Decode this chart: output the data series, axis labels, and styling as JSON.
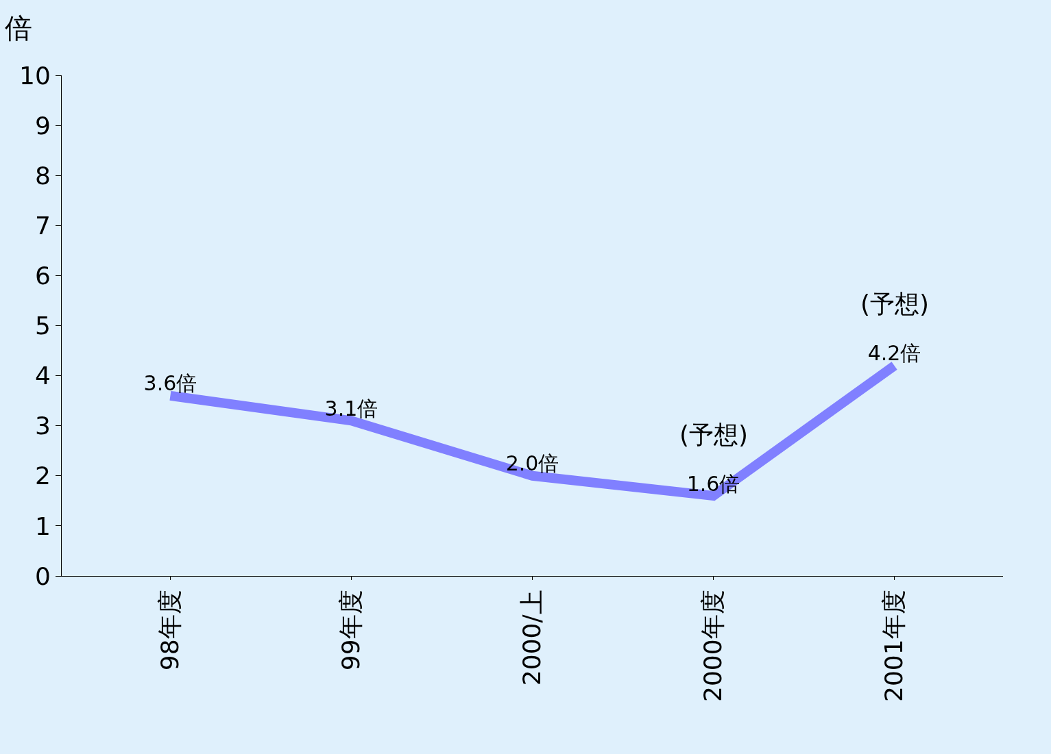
{
  "chart_data": {
    "type": "line",
    "ylabel": "倍",
    "categories": [
      "98年度",
      "99年度",
      "2000/上",
      "2000年度",
      "2001年度"
    ],
    "series": [
      {
        "color": "#8080ff",
        "values": [
          3.6,
          3.1,
          2.0,
          1.6,
          4.2
        ],
        "value_labels": [
          "3.6倍",
          "3.1倍",
          "2.0倍",
          "1.6倍",
          "4.2倍"
        ]
      }
    ],
    "ylim": [
      0,
      10
    ],
    "yticks": [
      0,
      1,
      2,
      3,
      4,
      5,
      6,
      7,
      8,
      9,
      10
    ],
    "annotations": [
      {
        "text": "(予想)",
        "x": "2000年度",
        "y": 1.6
      },
      {
        "text": "(予想)",
        "x": "2001年度",
        "y": 4.2
      }
    ],
    "grid": false,
    "marker": "none",
    "line_style": "solid"
  }
}
